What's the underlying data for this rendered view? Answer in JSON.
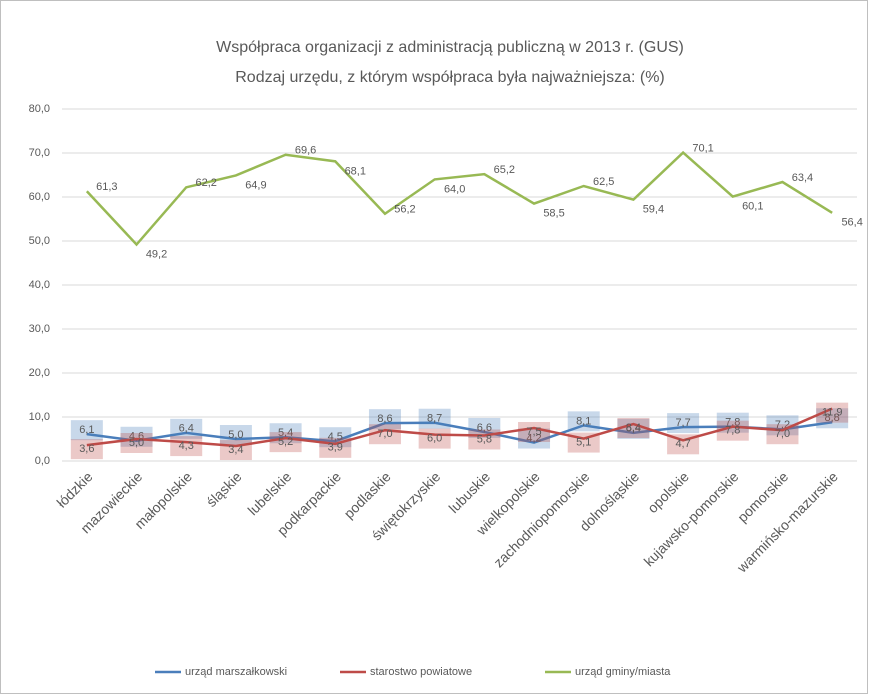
{
  "chart_data": {
    "type": "line",
    "title": "Współpraca organizacji z administracją publiczną w 2013 r. (GUS)",
    "subtitle": "Rodzaj urzędu, z którym współpraca była najważniejsza: (%)",
    "categories": [
      "łódzkie",
      "mazowieckie",
      "małopolskie",
      "śląskie",
      "lubelskie",
      "podkarpackie",
      "podlaskie",
      "świętokrzyskie",
      "lubuskie",
      "wielkopolskie",
      "zachodniopomorskie",
      "dolnośląskie",
      "opolskie",
      "kujawsko-pomorskie",
      "pomorskie",
      "warmińsko-mazurskie"
    ],
    "series": [
      {
        "name": "urząd marszałkowski",
        "color": "#4a7ebb",
        "values": [
          6.1,
          4.6,
          6.4,
          5.0,
          5.4,
          4.5,
          8.6,
          8.7,
          6.6,
          4.2,
          8.1,
          6.4,
          7.7,
          7.8,
          7.2,
          8.8
        ],
        "value_labels": [
          "6,1",
          "4,6",
          "6,4",
          "5,0",
          "5,4",
          "4,5",
          "8,6",
          "8,7",
          "6,6",
          "4,2",
          "8,1",
          "6,4",
          "7,7",
          "7,8",
          "7,2",
          "8,8"
        ]
      },
      {
        "name": "starostwo powiatowe",
        "color": "#be4b48",
        "values": [
          3.6,
          5.0,
          4.3,
          3.4,
          5.2,
          3.9,
          7.0,
          6.0,
          5.8,
          7.5,
          5.1,
          8.4,
          4.7,
          7.8,
          7.0,
          11.9
        ],
        "value_labels": [
          "3,6",
          "5,0",
          "4,3",
          "3,4",
          "5,2",
          "3,9",
          "7,0",
          "6,0",
          "5,8",
          "7,5",
          "5,1",
          "8,4",
          "4,7",
          "7,8",
          "7,0",
          "11,9"
        ]
      },
      {
        "name": "urząd gminy/miasta",
        "color": "#98b954",
        "values": [
          61.3,
          49.2,
          62.2,
          64.9,
          69.6,
          68.1,
          56.2,
          64.0,
          65.2,
          58.5,
          62.5,
          59.4,
          70.1,
          60.1,
          63.4,
          56.4
        ],
        "value_labels": [
          "61,3",
          "49,2",
          "62,2",
          "64,9",
          "69,6",
          "68,1",
          "56,2",
          "64,0",
          "65,2",
          "58,5",
          "62,5",
          "59,4",
          "70,1",
          "60,1",
          "63,4",
          "56,4"
        ]
      }
    ],
    "ylim": [
      0,
      80
    ],
    "yticks": [
      {
        "value": 0,
        "label": "0,0"
      },
      {
        "value": 10,
        "label": "10,0"
      },
      {
        "value": 20,
        "label": "20,0"
      },
      {
        "value": 30,
        "label": "30,0"
      },
      {
        "value": 40,
        "label": "40,0"
      },
      {
        "value": 50,
        "label": "50,0"
      },
      {
        "value": 60,
        "label": "60,0"
      },
      {
        "value": 70,
        "label": "70,0"
      },
      {
        "value": 80,
        "label": "80,0"
      }
    ],
    "grid": true,
    "legend": "bottom"
  }
}
